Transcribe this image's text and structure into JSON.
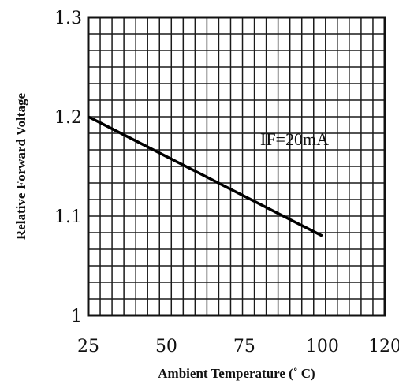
{
  "chart_data": {
    "type": "line",
    "title": "",
    "xlabel": "Ambient Temperature (˚ C)",
    "ylabel": "Relative Forward Voltage",
    "xlim": [
      25,
      120
    ],
    "ylim": [
      1.0,
      1.3
    ],
    "x_ticks": [
      "25",
      "50",
      "75",
      "100",
      "120"
    ],
    "y_ticks": [
      "1",
      "1.1",
      "1.2",
      "1.3"
    ],
    "grid": true,
    "series": [
      {
        "x": [
          25,
          100
        ],
        "y": [
          1.2,
          1.08
        ]
      }
    ],
    "annotation": "IF=20mA"
  }
}
